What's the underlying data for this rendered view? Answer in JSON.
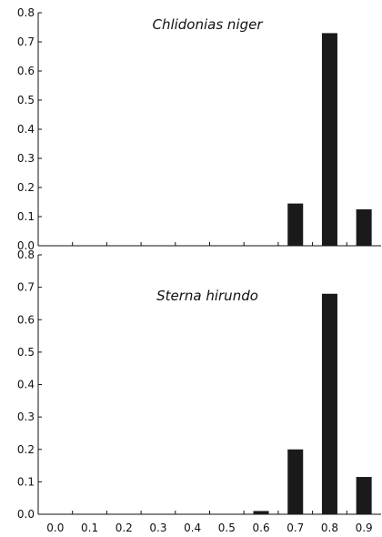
{
  "chart_data": [
    {
      "type": "bar",
      "title": "Chlidonias niger",
      "xlabel": "",
      "ylabel": "",
      "ylim": [
        0,
        0.8
      ],
      "yticks": [
        "0.0",
        "0.1",
        "0.2",
        "0.3",
        "0.4",
        "0.5",
        "0.6",
        "0.7",
        "0.8"
      ],
      "categories": [
        "0.0",
        "0.1",
        "0.2",
        "0.3",
        "0.4",
        "0.5",
        "0.6",
        "0.7",
        "0.8",
        "0.9"
      ],
      "values": [
        0,
        0,
        0,
        0,
        0,
        0,
        0,
        0.145,
        0.73,
        0.125
      ],
      "bar_color": "#1a1a1a",
      "show_x_tick_labels": false
    },
    {
      "type": "bar",
      "title": "Sterna hirundo",
      "xlabel": "",
      "ylabel": "",
      "ylim": [
        0,
        0.8
      ],
      "yticks": [
        "0.0",
        "0.1",
        "0.2",
        "0.3",
        "0.4",
        "0.5",
        "0.6",
        "0.7",
        "0.8"
      ],
      "categories": [
        "0.0",
        "0.1",
        "0.2",
        "0.3",
        "0.4",
        "0.5",
        "0.6",
        "0.7",
        "0.8",
        "0.9"
      ],
      "values": [
        0,
        0,
        0,
        0,
        0,
        0,
        0.01,
        0.2,
        0.68,
        0.115
      ],
      "bar_color": "#1a1a1a",
      "show_x_tick_labels": true
    }
  ]
}
